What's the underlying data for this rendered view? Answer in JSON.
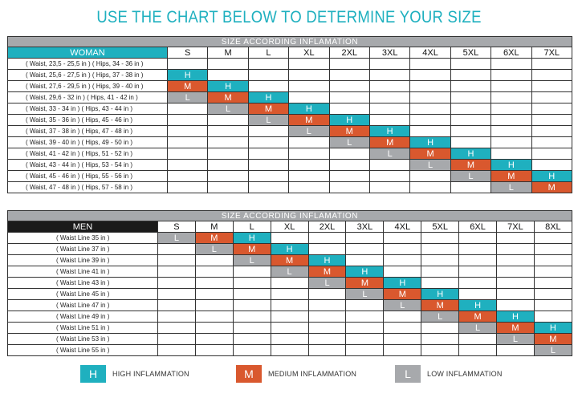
{
  "title": "USE THE CHART BELOW TO DETERMINE YOUR SIZE",
  "colors": {
    "high": "#1fb0bf",
    "medium": "#d9582e",
    "low": "#a7a9ac",
    "banner": "#a7a9ac",
    "men_label": "#1a1a1a"
  },
  "woman": {
    "banner": "SIZE  ACCORDING  INFLAMATION",
    "label": "WOMAN",
    "sizes": [
      "S",
      "M",
      "L",
      "XL",
      "2XL",
      "3XL",
      "4XL",
      "5XL",
      "6XL",
      "7XL"
    ],
    "rows": [
      {
        "desc": "( Waist, 23,5 - 25,5 in )  ( Hips, 34 - 36 in )",
        "cells": [
          "",
          "",
          "",
          "",
          "",
          "",
          "",
          "",
          "",
          ""
        ]
      },
      {
        "desc": "( Waist, 25,6 - 27,5 in )  ( Hips, 37 - 38 in )",
        "cells": [
          "H",
          "",
          "",
          "",
          "",
          "",
          "",
          "",
          "",
          ""
        ]
      },
      {
        "desc": "( Waist, 27,6 - 29,5 in )  ( Hips, 39 - 40 in )",
        "cells": [
          "M",
          "H",
          "",
          "",
          "",
          "",
          "",
          "",
          "",
          ""
        ]
      },
      {
        "desc": "( Waist, 29,6 -  32   in )  ( Hips, 41 - 42 in )",
        "cells": [
          "L",
          "M",
          "H",
          "",
          "",
          "",
          "",
          "",
          "",
          ""
        ]
      },
      {
        "desc": "( Waist, 33  -  34   in )  ( Hips, 43 - 44 in )",
        "cells": [
          "",
          "L",
          "M",
          "H",
          "",
          "",
          "",
          "",
          "",
          ""
        ]
      },
      {
        "desc": "( Waist, 35  -  36   in )  ( Hips, 45 - 46 in )",
        "cells": [
          "",
          "",
          "L",
          "M",
          "H",
          "",
          "",
          "",
          "",
          ""
        ]
      },
      {
        "desc": "( Waist, 37  -  38   in )  ( Hips, 47 - 48 in )",
        "cells": [
          "",
          "",
          "",
          "L",
          "M",
          "H",
          "",
          "",
          "",
          ""
        ]
      },
      {
        "desc": "( Waist, 39  -  40   in )  ( Hips, 49 - 50 in )",
        "cells": [
          "",
          "",
          "",
          "",
          "L",
          "M",
          "H",
          "",
          "",
          ""
        ]
      },
      {
        "desc": "( Waist, 41  -  42   in )  ( Hips, 51 - 52 in )",
        "cells": [
          "",
          "",
          "",
          "",
          "",
          "L",
          "M",
          "H",
          "",
          ""
        ]
      },
      {
        "desc": "( Waist, 43  -  44   in )  ( Hips, 53 - 54 in )",
        "cells": [
          "",
          "",
          "",
          "",
          "",
          "",
          "L",
          "M",
          "H",
          ""
        ]
      },
      {
        "desc": "( Waist, 45  -  46   in )  ( Hips, 55 - 56 in )",
        "cells": [
          "",
          "",
          "",
          "",
          "",
          "",
          "",
          "L",
          "M",
          "H"
        ]
      },
      {
        "desc": "( Waist, 47  -  48   in )  ( Hips, 57 - 58 in )",
        "cells": [
          "",
          "",
          "",
          "",
          "",
          "",
          "",
          "",
          "L",
          "M"
        ]
      }
    ]
  },
  "men": {
    "banner": "SIZE  ACCORDING  INFLAMATION",
    "label": "MEN",
    "sizes": [
      "S",
      "M",
      "L",
      "XL",
      "2XL",
      "3XL",
      "4XL",
      "5XL",
      "6XL",
      "7XL",
      "8XL"
    ],
    "rows": [
      {
        "desc": "( Waist Line  35 in )",
        "cells": [
          "L",
          "M",
          "H",
          "",
          "",
          "",
          "",
          "",
          "",
          "",
          ""
        ]
      },
      {
        "desc": "( Waist Line  37 in )",
        "cells": [
          "",
          "L",
          "M",
          "H",
          "",
          "",
          "",
          "",
          "",
          "",
          ""
        ]
      },
      {
        "desc": "( Waist Line  39 in )",
        "cells": [
          "",
          "",
          "L",
          "M",
          "H",
          "",
          "",
          "",
          "",
          "",
          ""
        ]
      },
      {
        "desc": "( Waist Line  41 in )",
        "cells": [
          "",
          "",
          "",
          "L",
          "M",
          "H",
          "",
          "",
          "",
          "",
          ""
        ]
      },
      {
        "desc": "( Waist Line  43 in )",
        "cells": [
          "",
          "",
          "",
          "",
          "L",
          "M",
          "H",
          "",
          "",
          "",
          ""
        ]
      },
      {
        "desc": "( Waist Line  45 in )",
        "cells": [
          "",
          "",
          "",
          "",
          "",
          "L",
          "M",
          "H",
          "",
          "",
          ""
        ]
      },
      {
        "desc": "( Waist Line  47 in )",
        "cells": [
          "",
          "",
          "",
          "",
          "",
          "",
          "L",
          "M",
          "H",
          "",
          ""
        ]
      },
      {
        "desc": "( Waist Line  49 in )",
        "cells": [
          "",
          "",
          "",
          "",
          "",
          "",
          "",
          "L",
          "M",
          "H",
          ""
        ]
      },
      {
        "desc": "( Waist Line  51 in )",
        "cells": [
          "",
          "",
          "",
          "",
          "",
          "",
          "",
          "",
          "L",
          "M",
          "H"
        ]
      },
      {
        "desc": "( Waist Line  53 in )",
        "cells": [
          "",
          "",
          "",
          "",
          "",
          "",
          "",
          "",
          "",
          "L",
          "M"
        ]
      },
      {
        "desc": "( Waist Line  55 in )",
        "cells": [
          "",
          "",
          "",
          "",
          "",
          "",
          "",
          "",
          "",
          "",
          "L"
        ]
      }
    ]
  },
  "legend": [
    {
      "key": "H",
      "label": "HIGH INFLAMMATION"
    },
    {
      "key": "M",
      "label": "MEDIUM INFLAMMATION"
    },
    {
      "key": "L",
      "label": "LOW INFLAMMATION"
    }
  ]
}
